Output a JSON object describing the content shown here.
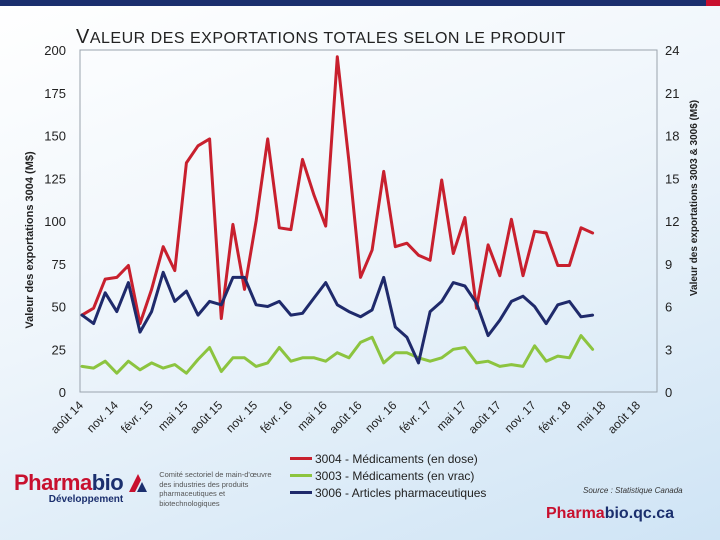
{
  "title": {
    "first": "V",
    "rest": "ALEUR DES EXPORTATIONS TOTALES SELON LE PRODUIT"
  },
  "colors": {
    "red": "#c8202e",
    "green": "#8cc43f",
    "navy": "#1f2a6b"
  },
  "chart_data": {
    "type": "line",
    "title": "VALEUR DES EXPORTATIONS TOTALES SELON LE PRODUIT",
    "ylabel_left": "Valeur des exportations 3004 (M$)",
    "ylabel_right": "Valeur des exportations 3003 & 3006 (M$)",
    "ylim_left": [
      0,
      200
    ],
    "ylim_right": [
      0,
      24
    ],
    "yticks_left": [
      "0",
      "25",
      "50",
      "75",
      "100",
      "125",
      "150",
      "175",
      "200"
    ],
    "yticks_right": [
      "0",
      "3",
      "6",
      "9",
      "12",
      "15",
      "18",
      "21",
      "24"
    ],
    "x_tick_labels": [
      "août 14",
      "nov. 14",
      "févr. 15",
      "mai 15",
      "août 15",
      "nov. 15",
      "févr. 16",
      "mai 16",
      "août 16",
      "nov. 16",
      "févr. 17",
      "mai 17",
      "août 17",
      "nov. 17",
      "févr. 18",
      "mai 18",
      "août 18"
    ],
    "grid": false,
    "series": [
      {
        "name": "3004 - Médicaments (en dose)",
        "axis": "left",
        "color": "#c8202e",
        "values": [
          45,
          49,
          66,
          67,
          74,
          40,
          60,
          85,
          71,
          134,
          144,
          148,
          43,
          98,
          60,
          100,
          148,
          96,
          95,
          136,
          115,
          97,
          196,
          135,
          67,
          83,
          129,
          85,
          87,
          80,
          77,
          124,
          81,
          102,
          49,
          86,
          68,
          101,
          68,
          94,
          93,
          74,
          74,
          96,
          93
        ]
      },
      {
        "name": "3003 - Médicaments (en vrac)",
        "axis": "left",
        "color": "#8cc43f",
        "values": [
          15,
          14,
          18,
          11,
          18,
          13,
          17,
          14,
          16,
          11,
          19,
          26,
          12,
          20,
          20,
          15,
          17,
          26,
          18,
          20,
          20,
          18,
          23,
          20,
          29,
          32,
          17,
          23,
          23,
          20,
          18,
          20,
          25,
          26,
          17,
          18,
          15,
          16,
          15,
          27,
          18,
          21,
          20,
          33,
          25
        ]
      },
      {
        "name": "3006 - Articles pharmaceutiques",
        "axis": "left",
        "color": "#1f2a6b",
        "values": [
          45,
          40,
          58,
          47,
          64,
          35,
          47,
          70,
          53,
          59,
          45,
          53,
          51,
          67,
          67,
          51,
          50,
          53,
          45,
          46,
          55,
          64,
          51,
          47,
          44,
          48,
          67,
          38,
          32,
          17,
          47,
          53,
          64,
          62,
          52,
          33,
          42,
          53,
          56,
          50,
          40,
          51,
          53,
          44,
          45
        ]
      }
    ]
  },
  "legend": [
    {
      "label": "3004 - Médicaments (en dose)",
      "color": "#c8202e"
    },
    {
      "label": "3003 - Médicaments (en vrac)",
      "color": "#8cc43f"
    },
    {
      "label": "3006 - Articles pharmaceutiques",
      "color": "#1f2a6b"
    }
  ],
  "logo": {
    "pharma": "Pharma",
    "bio": "bio",
    "sub": "Développement",
    "description": "Comité sectoriel de main-d'œuvre des industries des produits pharmaceutiques et biotechnologiques"
  },
  "source": "Source : Statistique Canada",
  "site": {
    "part1": "Pharma",
    "part2": "bio.qc.ca"
  }
}
